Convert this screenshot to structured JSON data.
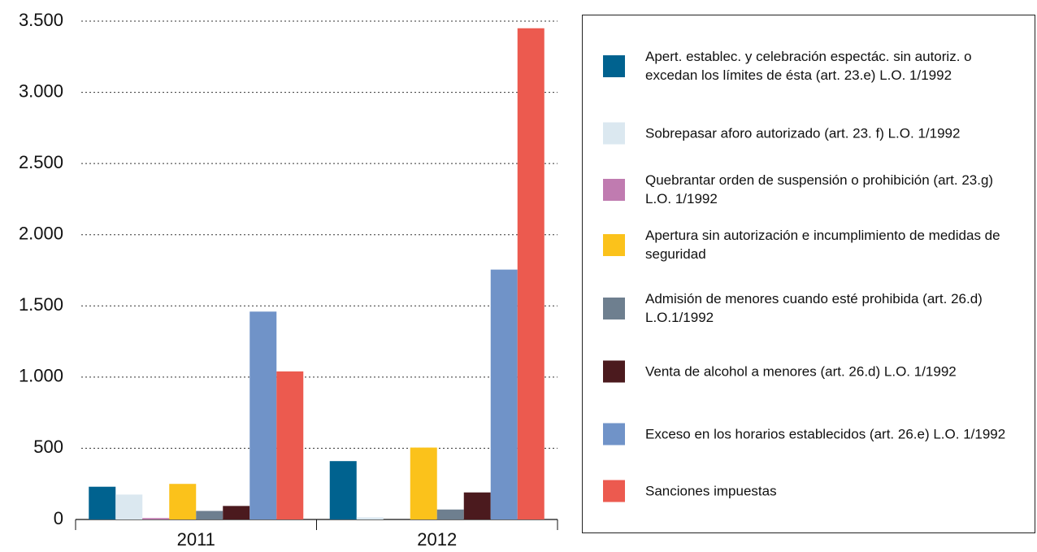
{
  "chart_data": {
    "type": "bar",
    "categories": [
      "2011",
      "2012"
    ],
    "series": [
      {
        "name": "Apert. establec. y celebración espectác. sin autoriz. o excedan los límites de ésta (art. 23.e) L.O. 1/1992",
        "color": "#00628f",
        "values": [
          230,
          410
        ]
      },
      {
        "name": "Sobrepasar aforo autorizado (art. 23. f) L.O. 1/1992",
        "color": "#dbe8f0",
        "values": [
          175,
          15
        ]
      },
      {
        "name": "Quebrantar orden de suspensión o prohibición (art. 23.g) L.O. 1/1992",
        "color": "#c07bb0",
        "values": [
          10,
          0
        ]
      },
      {
        "name": "Apertura sin autorización e incumplimiento de medidas de seguridad",
        "color": "#fbc21b",
        "values": [
          250,
          505
        ]
      },
      {
        "name": "Admisión de menores cuando esté prohibida (art. 26.d) L.O.1/1992",
        "color": "#6e7f8f",
        "values": [
          60,
          70
        ]
      },
      {
        "name": "Venta de alcohol a menores (art. 26.d) L.O. 1/1992",
        "color": "#4b1a1e",
        "values": [
          95,
          190
        ]
      },
      {
        "name": "Exceso en los horarios establecidos (art. 26.e) L.O. 1/1992",
        "color": "#7093c8",
        "values": [
          1460,
          1755
        ]
      },
      {
        "name": "Sanciones impuestas",
        "color": "#ec5a4f",
        "values": [
          1040,
          3450
        ]
      }
    ],
    "ylim": [
      0,
      3500
    ],
    "yticks": [
      0,
      500,
      {
        "value": 1000,
        "label": "1.000"
      },
      {
        "value": 1500,
        "label": "1.500"
      },
      {
        "value": 2000,
        "label": "2.000"
      },
      {
        "value": 2500,
        "label": "2.500"
      },
      {
        "value": 3000,
        "label": "3.000"
      },
      {
        "value": 3500,
        "label": "3.500"
      }
    ],
    "grid": true
  }
}
